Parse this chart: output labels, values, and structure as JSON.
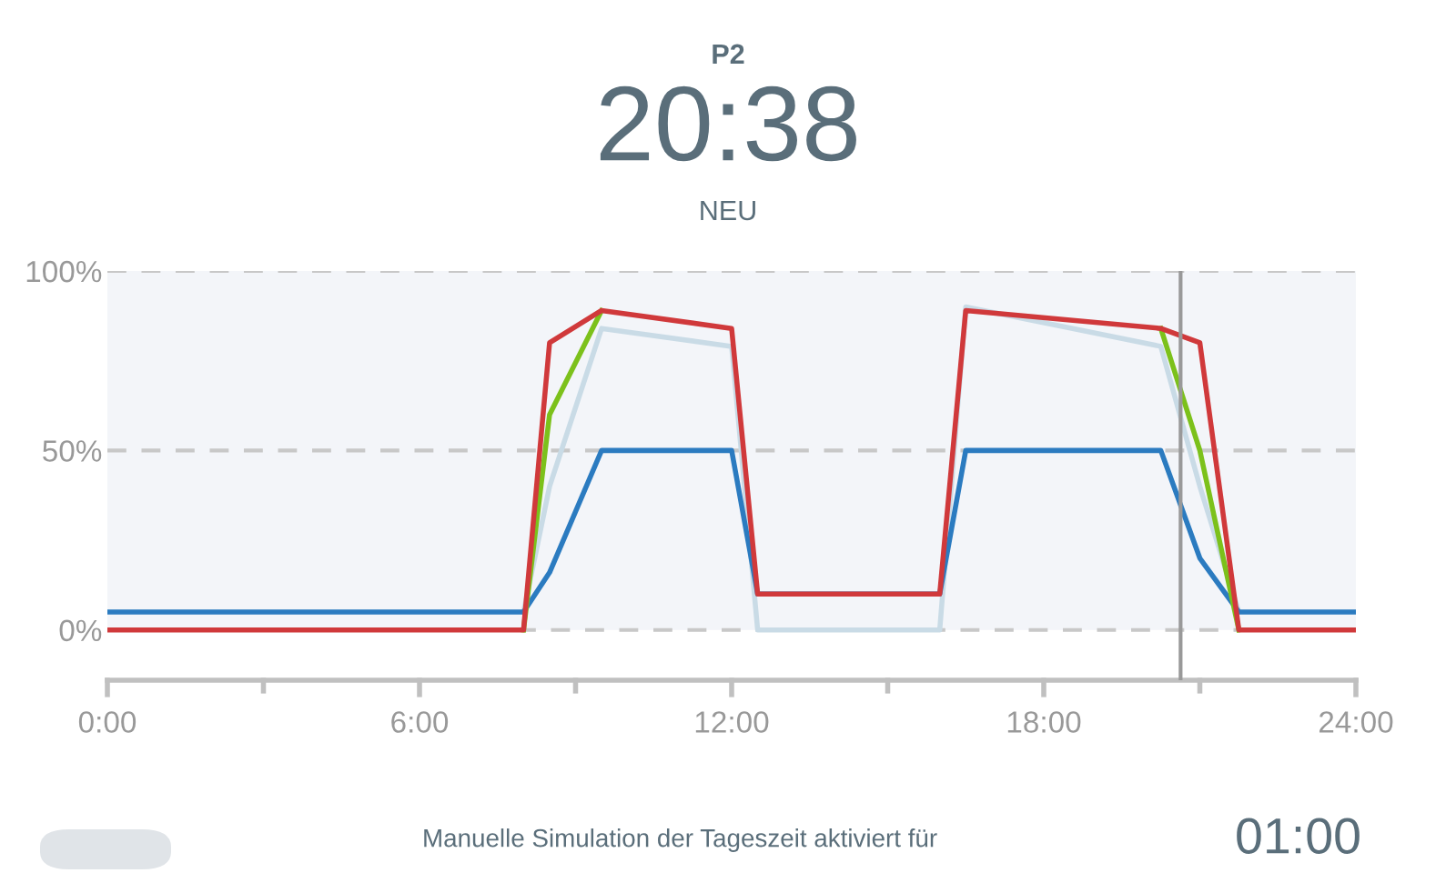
{
  "chart_data": {
    "type": "line",
    "title": "P2",
    "subtitle": "20:38",
    "annotations": [
      "NEU",
      "Manuelle Simulation der Tageszeit aktiviert für",
      "01:00"
    ],
    "x": [
      0,
      8,
      8.5,
      9.5,
      12,
      12.5,
      16,
      16.5,
      20.25,
      21,
      21.75,
      24
    ],
    "series": [
      {
        "color": "#c9dbe6",
        "values": [
          null,
          5,
          40,
          84,
          79,
          0,
          0,
          90,
          79,
          40,
          5,
          null
        ]
      },
      {
        "color": "#2b7bc0",
        "values": [
          5,
          5,
          16,
          50,
          50,
          10,
          10,
          50,
          50,
          20,
          5,
          5
        ]
      },
      {
        "color": "#7cc11b",
        "values": [
          null,
          0,
          60,
          89,
          null,
          null,
          null,
          null,
          84,
          50,
          0,
          null
        ]
      },
      {
        "color": "#d0393b",
        "values": [
          0,
          0,
          80,
          89,
          84,
          10,
          10,
          89,
          84,
          80,
          0,
          0
        ]
      }
    ],
    "xlim": [
      0,
      24
    ],
    "xticks": [
      {
        "value": 0,
        "label": "0:00"
      },
      {
        "value": 3,
        "label": null
      },
      {
        "value": 6,
        "label": "6:00"
      },
      {
        "value": 9,
        "label": null
      },
      {
        "value": 12,
        "label": "12:00"
      },
      {
        "value": 15,
        "label": null
      },
      {
        "value": 18,
        "label": "18:00"
      },
      {
        "value": 21,
        "label": null
      },
      {
        "value": 24,
        "label": "24:00"
      }
    ],
    "ylim": [
      -14,
      100
    ],
    "yticks": [
      {
        "value": 0,
        "label": "0%"
      },
      {
        "value": 50,
        "label": "50%"
      },
      {
        "value": 100,
        "label": "100%"
      }
    ],
    "grid": "y",
    "line_style": "solid",
    "marker": "none",
    "ref_lines": [
      {
        "axis": "x",
        "value": 20.63,
        "color": "#999999"
      }
    ],
    "bands": [
      {
        "axis": "y",
        "from": 0,
        "to": 100,
        "color": "#f3f5f9"
      }
    ]
  }
}
